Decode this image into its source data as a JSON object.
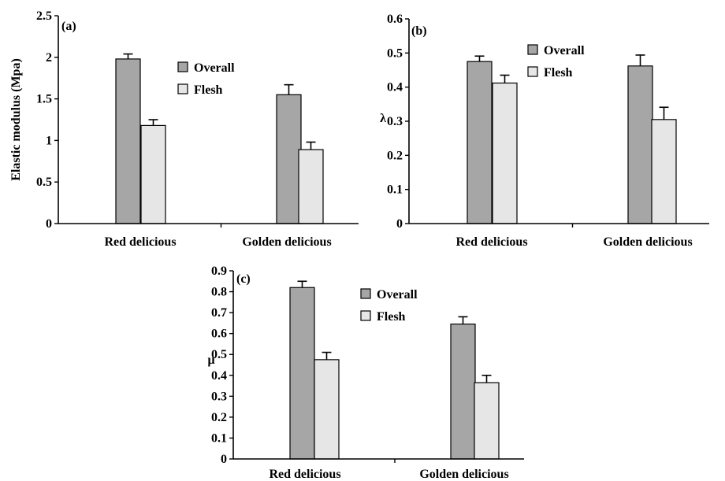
{
  "chart_data": [
    {
      "type": "bar",
      "panel_label": "(a)",
      "categories": [
        "Red delicious",
        "Golden delicious"
      ],
      "series": [
        {
          "name": "Overall",
          "values": [
            1.98,
            1.55
          ],
          "error": [
            0.06,
            0.12
          ],
          "color": "#a6a6a6"
        },
        {
          "name": "Flesh",
          "values": [
            1.18,
            0.89
          ],
          "error": [
            0.07,
            0.09
          ],
          "color": "#e6e6e6"
        }
      ],
      "ylabel": "Elastic modulus (Mpa)",
      "ylim": [
        0,
        2.5
      ],
      "yticks": [
        "0",
        "0.5",
        "1",
        "1.5",
        "2",
        "2.5"
      ],
      "ytick_values": [
        0,
        0.5,
        1,
        1.5,
        2,
        2.5
      ],
      "legend": "top-center",
      "grid": false
    },
    {
      "type": "bar",
      "panel_label": "(b)",
      "categories": [
        "Red delicious",
        "Golden delicious"
      ],
      "series": [
        {
          "name": "Overall",
          "values": [
            0.475,
            0.462
          ],
          "error": [
            0.016,
            0.032
          ],
          "color": "#a6a6a6"
        },
        {
          "name": "Flesh",
          "values": [
            0.412,
            0.305
          ],
          "error": [
            0.023,
            0.036
          ],
          "color": "#e6e6e6"
        }
      ],
      "ylabel": "λ",
      "ylim": [
        0,
        0.6
      ],
      "yticks": [
        "0",
        "0.1",
        "0.2",
        "0.3",
        "0.4",
        "0.5",
        "0.6"
      ],
      "ytick_values": [
        0,
        0.1,
        0.2,
        0.3,
        0.4,
        0.5,
        0.6
      ],
      "legend": "top-center",
      "grid": false
    },
    {
      "type": "bar",
      "panel_label": "(c)",
      "categories": [
        "Red delicious",
        "Golden delicious"
      ],
      "series": [
        {
          "name": "Overall",
          "values": [
            0.82,
            0.645
          ],
          "error": [
            0.03,
            0.035
          ],
          "color": "#a6a6a6"
        },
        {
          "name": "Flesh",
          "values": [
            0.475,
            0.365
          ],
          "error": [
            0.035,
            0.035
          ],
          "color": "#e6e6e6"
        }
      ],
      "ylabel": "μ",
      "ylim": [
        0,
        0.9
      ],
      "yticks": [
        "0",
        "0.1",
        "0.2",
        "0.3",
        "0.4",
        "0.5",
        "0.6",
        "0.7",
        "0.8",
        "0.9"
      ],
      "ytick_values": [
        0,
        0.1,
        0.2,
        0.3,
        0.4,
        0.5,
        0.6,
        0.7,
        0.8,
        0.9
      ],
      "legend": "top-center",
      "grid": false
    }
  ]
}
